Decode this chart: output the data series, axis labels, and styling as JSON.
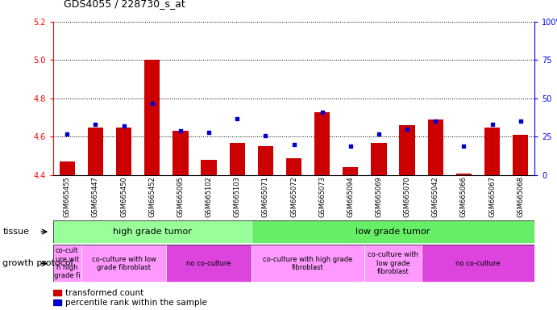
{
  "title": "GDS4055 / 228730_s_at",
  "samples": [
    "GSM665455",
    "GSM665447",
    "GSM665450",
    "GSM665452",
    "GSM665095",
    "GSM665102",
    "GSM665103",
    "GSM665071",
    "GSM665072",
    "GSM665073",
    "GSM665094",
    "GSM665069",
    "GSM665070",
    "GSM665042",
    "GSM665066",
    "GSM665067",
    "GSM665068"
  ],
  "bar_values": [
    4.47,
    4.65,
    4.65,
    5.0,
    4.63,
    4.48,
    4.57,
    4.55,
    4.49,
    4.73,
    4.44,
    4.57,
    4.66,
    4.69,
    4.41,
    4.65,
    4.61
  ],
  "dot_values": [
    27,
    33,
    32,
    47,
    29,
    28,
    37,
    26,
    20,
    41,
    19,
    27,
    30,
    35,
    19,
    33,
    35
  ],
  "ylim_left": [
    4.4,
    5.2
  ],
  "ylim_right": [
    0,
    100
  ],
  "yticks_left": [
    4.4,
    4.6,
    4.8,
    5.0,
    5.2
  ],
  "yticks_right": [
    0,
    25,
    50,
    75,
    100
  ],
  "bar_color": "#cc0000",
  "dot_color": "#0000cc",
  "bar_bottom": 4.4,
  "tissue_groups": [
    {
      "label": "high grade tumor",
      "start": 0,
      "end": 7,
      "color": "#99ff99"
    },
    {
      "label": "low grade tumor",
      "start": 7,
      "end": 17,
      "color": "#66ee66"
    }
  ],
  "growth_groups": [
    {
      "label": "co-cult\nure wit\nh high\ngrade fi",
      "start": 0,
      "end": 1,
      "color": "#ff99ff"
    },
    {
      "label": "co-culture with low\ngrade fibroblast",
      "start": 1,
      "end": 4,
      "color": "#ff99ff"
    },
    {
      "label": "no co-culture",
      "start": 4,
      "end": 7,
      "color": "#dd44dd"
    },
    {
      "label": "co-culture with high grade\nfibroblast",
      "start": 7,
      "end": 11,
      "color": "#ff99ff"
    },
    {
      "label": "co-culture with\nlow grade\nfibroblast",
      "start": 11,
      "end": 13,
      "color": "#ff99ff"
    },
    {
      "label": "no co-culture",
      "start": 13,
      "end": 17,
      "color": "#dd44dd"
    }
  ],
  "legend_items": [
    {
      "label": "transformed count",
      "color": "#cc0000"
    },
    {
      "label": "percentile rank within the sample",
      "color": "#0000cc"
    }
  ]
}
